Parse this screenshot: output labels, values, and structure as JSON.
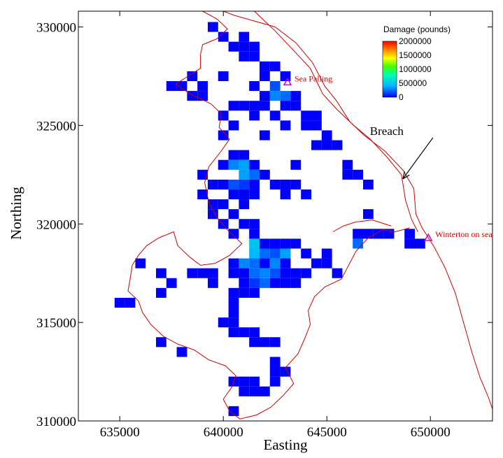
{
  "chart_data": {
    "type": "heatmap",
    "title": "",
    "xlabel": "Easting",
    "ylabel": "Northing",
    "xlim": [
      633000,
      653000
    ],
    "ylim": [
      310000,
      330800
    ],
    "x_ticks": [
      635000,
      640000,
      645000,
      650000
    ],
    "x_tick_labels": [
      "635000",
      "640000",
      "645000",
      "650000"
    ],
    "y_ticks": [
      310000,
      315000,
      320000,
      325000,
      330000
    ],
    "y_tick_labels": [
      "310000",
      "315000",
      "320000",
      "325000",
      "330000"
    ],
    "grid": false,
    "legend": {
      "title": "Damage (pounds)",
      "placement": "top-right",
      "min": 0,
      "max": 2000000,
      "ticks": [
        2000000,
        1500000,
        1000000,
        500000,
        0
      ],
      "tick_labels": [
        "2000000",
        "1500000",
        "1000000",
        "500000",
        "0"
      ]
    },
    "colorscale": [
      "#0000ff",
      "#00b4ff",
      "#00ffb0",
      "#44ff00",
      "#ffff00",
      "#ff8000",
      "#ff0000"
    ],
    "boundary_color": "#cc0000",
    "marker_color": "#cc00cc",
    "cell_size": 500,
    "cells": [
      [
        639500,
        330000,
        0
      ],
      [
        640000,
        329500,
        0
      ],
      [
        641000,
        329500,
        0
      ],
      [
        640500,
        329000,
        0
      ],
      [
        641000,
        329000,
        0
      ],
      [
        641500,
        329000,
        0
      ],
      [
        641000,
        328500,
        0
      ],
      [
        641500,
        328500,
        0
      ],
      [
        642000,
        328000,
        0
      ],
      [
        642500,
        328000,
        0
      ],
      [
        642000,
        327500,
        0
      ],
      [
        643000,
        327500,
        0
      ],
      [
        638500,
        327500,
        0
      ],
      [
        640000,
        327500,
        0
      ],
      [
        638000,
        327000,
        0
      ],
      [
        639000,
        327000,
        0
      ],
      [
        642500,
        327000,
        150000
      ],
      [
        641500,
        327000,
        0
      ],
      [
        637500,
        327000,
        0
      ],
      [
        638500,
        326500,
        0
      ],
      [
        642500,
        326500,
        250000
      ],
      [
        642000,
        326500,
        0
      ],
      [
        643000,
        326500,
        200000
      ],
      [
        643500,
        326500,
        0
      ],
      [
        639000,
        326500,
        0
      ],
      [
        640500,
        326000,
        0
      ],
      [
        641000,
        326000,
        0
      ],
      [
        641500,
        326000,
        0
      ],
      [
        642000,
        326000,
        0
      ],
      [
        643000,
        326000,
        0
      ],
      [
        643500,
        326000,
        0
      ],
      [
        644000,
        325500,
        0
      ],
      [
        644500,
        325500,
        0
      ],
      [
        641500,
        325500,
        0
      ],
      [
        642500,
        325500,
        0
      ],
      [
        640000,
        325500,
        0
      ],
      [
        640500,
        325000,
        0
      ],
      [
        644500,
        325000,
        0
      ],
      [
        643000,
        325000,
        0
      ],
      [
        644000,
        325000,
        0
      ],
      [
        645000,
        324500,
        0
      ],
      [
        642000,
        324500,
        0
      ],
      [
        645000,
        324000,
        0
      ],
      [
        640000,
        324500,
        0
      ],
      [
        644500,
        324000,
        0
      ],
      [
        645500,
        324000,
        0
      ],
      [
        640500,
        323500,
        0
      ],
      [
        641000,
        323500,
        0
      ],
      [
        641500,
        323000,
        0
      ],
      [
        641000,
        323000,
        450000
      ],
      [
        640500,
        323000,
        250000
      ],
      [
        641000,
        323000,
        300000
      ],
      [
        640000,
        323000,
        0
      ],
      [
        643500,
        323000,
        0
      ],
      [
        646000,
        323000,
        0
      ],
      [
        639000,
        322500,
        0
      ],
      [
        641000,
        322500,
        300000
      ],
      [
        641500,
        322500,
        200000
      ],
      [
        642000,
        322500,
        0
      ],
      [
        646000,
        322500,
        0
      ],
      [
        646500,
        322500,
        0
      ],
      [
        639500,
        322000,
        0
      ],
      [
        640000,
        322000,
        0
      ],
      [
        640500,
        322000,
        150000
      ],
      [
        641000,
        322000,
        100000
      ],
      [
        641500,
        322000,
        0
      ],
      [
        642500,
        322000,
        0
      ],
      [
        643000,
        322000,
        0
      ],
      [
        643500,
        322000,
        0
      ],
      [
        647000,
        322000,
        0
      ],
      [
        639000,
        321500,
        0
      ],
      [
        640500,
        321500,
        0
      ],
      [
        641000,
        321500,
        0
      ],
      [
        641500,
        321500,
        0
      ],
      [
        643000,
        321500,
        0
      ],
      [
        644000,
        321500,
        0
      ],
      [
        639500,
        321000,
        0
      ],
      [
        640000,
        321000,
        0
      ],
      [
        641000,
        321000,
        0
      ],
      [
        639500,
        320500,
        0
      ],
      [
        640500,
        320500,
        0
      ],
      [
        647000,
        320500,
        0
      ],
      [
        640000,
        320000,
        0
      ],
      [
        641000,
        320000,
        0
      ],
      [
        641500,
        320000,
        0
      ],
      [
        640500,
        319500,
        0
      ],
      [
        641500,
        319500,
        0
      ],
      [
        642000,
        319000,
        0
      ],
      [
        646500,
        319500,
        0
      ],
      [
        647000,
        319500,
        0
      ],
      [
        647500,
        319500,
        0
      ],
      [
        648000,
        319500,
        0
      ],
      [
        646500,
        319000,
        200000
      ],
      [
        649000,
        319500,
        0
      ],
      [
        649000,
        319000,
        0
      ],
      [
        649500,
        319000,
        0
      ],
      [
        641500,
        319000,
        400000
      ],
      [
        642500,
        319000,
        0
      ],
      [
        643000,
        319000,
        0
      ],
      [
        643500,
        319000,
        0
      ],
      [
        644000,
        318500,
        0
      ],
      [
        645000,
        318500,
        0
      ],
      [
        641500,
        318500,
        350000
      ],
      [
        642000,
        318500,
        200000
      ],
      [
        642500,
        318500,
        150000
      ],
      [
        643000,
        318500,
        300000
      ],
      [
        641000,
        318000,
        250000
      ],
      [
        641500,
        318000,
        200000
      ],
      [
        642000,
        318000,
        0
      ],
      [
        642500,
        318000,
        250000
      ],
      [
        643000,
        318000,
        0
      ],
      [
        644500,
        318000,
        0
      ],
      [
        645000,
        318000,
        0
      ],
      [
        640500,
        318000,
        0
      ],
      [
        636000,
        318000,
        0
      ],
      [
        638500,
        317500,
        0
      ],
      [
        639000,
        317500,
        0
      ],
      [
        639500,
        317500,
        0
      ],
      [
        640500,
        317500,
        0
      ],
      [
        641000,
        317500,
        0
      ],
      [
        641500,
        317500,
        200000
      ],
      [
        642000,
        317500,
        250000
      ],
      [
        642500,
        317500,
        150000
      ],
      [
        643000,
        317500,
        0
      ],
      [
        643500,
        317500,
        0
      ],
      [
        644000,
        317500,
        0
      ],
      [
        645500,
        317500,
        0
      ],
      [
        637000,
        317500,
        0
      ],
      [
        637500,
        317000,
        0
      ],
      [
        641000,
        317000,
        0
      ],
      [
        641500,
        317000,
        100000
      ],
      [
        642000,
        317000,
        200000
      ],
      [
        642500,
        317000,
        0
      ],
      [
        643000,
        317000,
        0
      ],
      [
        643500,
        317000,
        0
      ],
      [
        637000,
        316500,
        0
      ],
      [
        639500,
        317000,
        0
      ],
      [
        641500,
        316500,
        0
      ],
      [
        640500,
        316500,
        0
      ],
      [
        641000,
        316500,
        0
      ],
      [
        640500,
        316000,
        0
      ],
      [
        640500,
        315500,
        0
      ],
      [
        640000,
        315000,
        0
      ],
      [
        640500,
        315000,
        0
      ],
      [
        635000,
        316000,
        0
      ],
      [
        635500,
        316000,
        0
      ],
      [
        640500,
        314500,
        0
      ],
      [
        641000,
        314500,
        0
      ],
      [
        641500,
        314500,
        0
      ],
      [
        641500,
        314000,
        0
      ],
      [
        642000,
        314000,
        0
      ],
      [
        642500,
        314000,
        0
      ],
      [
        637000,
        314000,
        0
      ],
      [
        638000,
        313500,
        0
      ],
      [
        642500,
        313000,
        0
      ],
      [
        642500,
        312500,
        0
      ],
      [
        643000,
        312500,
        0
      ],
      [
        640500,
        312000,
        0
      ],
      [
        641000,
        312000,
        0
      ],
      [
        641500,
        312000,
        0
      ],
      [
        642500,
        312000,
        0
      ],
      [
        641000,
        311500,
        0
      ],
      [
        641500,
        311500,
        0
      ],
      [
        642000,
        311500,
        0
      ],
      [
        640500,
        310500,
        0
      ]
    ],
    "boundary": [
      [
        [
          640000,
          330800
        ],
        [
          640500,
          330600
        ],
        [
          641500,
          330300
        ],
        [
          642500,
          330000
        ],
        [
          643500,
          329200
        ],
        [
          644300,
          328200
        ],
        [
          644900,
          327000
        ],
        [
          645500,
          326200
        ],
        [
          646100,
          325200
        ],
        [
          646800,
          324500
        ],
        [
          647800,
          323700
        ],
        [
          648700,
          322700
        ],
        [
          649200,
          321800
        ],
        [
          649300,
          320500
        ],
        [
          649600,
          319800
        ],
        [
          650200,
          318800
        ],
        [
          650700,
          317800
        ],
        [
          651200,
          316500
        ],
        [
          651600,
          315000
        ],
        [
          652000,
          313500
        ],
        [
          652400,
          312200
        ],
        [
          652800,
          311200
        ],
        [
          653000,
          310600
        ]
      ],
      [
        [
          641500,
          330800
        ],
        [
          642500,
          329800
        ],
        [
          643400,
          328800
        ],
        [
          644200,
          327900
        ],
        [
          644800,
          326600
        ],
        [
          645500,
          325800
        ],
        [
          646300,
          325000
        ],
        [
          647100,
          324300
        ],
        [
          647900,
          323400
        ],
        [
          648600,
          322500
        ],
        [
          648800,
          321200
        ],
        [
          649100,
          320200
        ],
        [
          649400,
          319600
        ]
      ],
      [
        [
          638900,
          328600
        ],
        [
          638900,
          327900
        ],
        [
          638300,
          327500
        ],
        [
          637700,
          327100
        ],
        [
          638400,
          326600
        ],
        [
          639400,
          326100
        ],
        [
          639900,
          325600
        ],
        [
          639800,
          324900
        ],
        [
          640300,
          324300
        ],
        [
          639900,
          323700
        ],
        [
          639300,
          322900
        ],
        [
          639100,
          322100
        ],
        [
          639300,
          321100
        ],
        [
          639700,
          320300
        ],
        [
          640200,
          319700
        ],
        [
          640900,
          319000
        ],
        [
          640300,
          318400
        ],
        [
          639600,
          318000
        ],
        [
          638900,
          317900
        ],
        [
          638400,
          318300
        ],
        [
          637800,
          318900
        ],
        [
          637600,
          319600
        ],
        [
          636900,
          319300
        ],
        [
          636300,
          318900
        ],
        [
          635900,
          318400
        ],
        [
          635600,
          317900
        ],
        [
          635500,
          317200
        ],
        [
          635400,
          316600
        ],
        [
          635900,
          316100
        ],
        [
          636100,
          315500
        ],
        [
          636500,
          314900
        ],
        [
          637100,
          314300
        ],
        [
          637800,
          313900
        ],
        [
          638600,
          313600
        ],
        [
          639300,
          313100
        ],
        [
          640100,
          312800
        ],
        [
          640600,
          312300
        ],
        [
          640400,
          311700
        ],
        [
          640000,
          311100
        ],
        [
          640300,
          310500
        ],
        [
          640800,
          310100
        ],
        [
          641600,
          310300
        ],
        [
          642300,
          310700
        ],
        [
          642900,
          311300
        ],
        [
          643400,
          311900
        ],
        [
          643000,
          312700
        ],
        [
          643600,
          313400
        ],
        [
          643900,
          314100
        ],
        [
          644200,
          314900
        ],
        [
          644100,
          315600
        ],
        [
          644400,
          316300
        ],
        [
          644900,
          316800
        ],
        [
          645700,
          317200
        ],
        [
          646000,
          317800
        ],
        [
          646400,
          318600
        ],
        [
          647000,
          319300
        ],
        [
          647700,
          319700
        ],
        [
          648300,
          319600
        ],
        [
          649000,
          319800
        ]
      ],
      [
        [
          639000,
          330800
        ],
        [
          639700,
          330400
        ],
        [
          640200,
          329900
        ],
        [
          639700,
          329400
        ],
        [
          639000,
          329100
        ],
        [
          638900,
          328600
        ]
      ],
      [
        [
          645300,
          319600
        ],
        [
          645800,
          319900
        ],
        [
          646400,
          320100
        ],
        [
          647200,
          320200
        ],
        [
          648100,
          319900
        ]
      ]
    ],
    "annotations": [
      {
        "label": "Sea Palling",
        "x": 643100,
        "y": 327200,
        "kind": "place"
      },
      {
        "label": "Winterton on sea",
        "x": 649900,
        "y": 319300,
        "kind": "place"
      },
      {
        "label": "Breach",
        "x": 648500,
        "y": 322000,
        "kind": "arrow"
      }
    ]
  }
}
